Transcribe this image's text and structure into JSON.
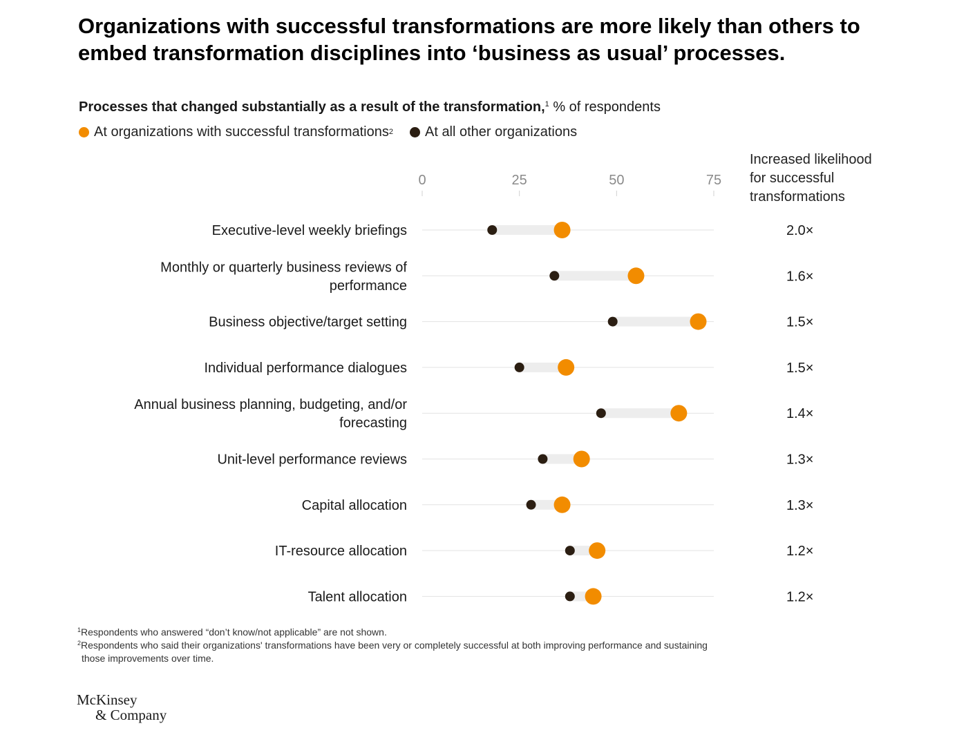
{
  "title": "Organizations with successful transformations are more likely than others to embed transformation disciplines into ‘business as usual’ processes.",
  "subtitle": {
    "bold": "Processes that changed substantially as a result of the transformation,",
    "footnote_ref": "1",
    "unit": " % of respondents"
  },
  "legend": {
    "successful": {
      "label": "At organizations with successful transformations",
      "footnote_ref": "2",
      "color": "#F28C00"
    },
    "others": {
      "label": "At all other organizations",
      "color": "#2B1E12"
    }
  },
  "right_header": {
    "line1": "Increased likelihood",
    "line2": "for successful",
    "line3": "transformations"
  },
  "chart_data": {
    "type": "dot-plot",
    "xlim": [
      0,
      75
    ],
    "xticks": [
      "0",
      "25",
      "50",
      "75"
    ],
    "series": [
      {
        "name": "At organizations with successful transformations",
        "color": "#F28C00"
      },
      {
        "name": "At all other organizations",
        "color": "#2B1E12"
      }
    ],
    "rows": [
      {
        "label": [
          "Executive-level weekly briefings"
        ],
        "successful": 36,
        "others": 18,
        "likelihood": "2.0×"
      },
      {
        "label": [
          "Monthly or quarterly business reviews of",
          "performance"
        ],
        "successful": 55,
        "others": 34,
        "likelihood": "1.6×"
      },
      {
        "label": [
          "Business objective/target setting"
        ],
        "successful": 71,
        "others": 49,
        "likelihood": "1.5×"
      },
      {
        "label": [
          "Individual performance dialogues"
        ],
        "successful": 37,
        "others": 25,
        "likelihood": "1.5×"
      },
      {
        "label": [
          "Annual business planning, budgeting, and/or",
          "forecasting"
        ],
        "successful": 66,
        "others": 46,
        "likelihood": "1.4×"
      },
      {
        "label": [
          "Unit-level performance reviews"
        ],
        "successful": 41,
        "others": 31,
        "likelihood": "1.3×"
      },
      {
        "label": [
          "Capital allocation"
        ],
        "successful": 36,
        "others": 28,
        "likelihood": "1.3×"
      },
      {
        "label": [
          "IT-resource allocation"
        ],
        "successful": 45,
        "others": 38,
        "likelihood": "1.2×"
      },
      {
        "label": [
          "Talent allocation"
        ],
        "successful": 44,
        "others": 38,
        "likelihood": "1.2×"
      }
    ]
  },
  "footnotes": {
    "f1_ref": "1",
    "f1": "Respondents who answered “don’t know/not applicable” are not shown.",
    "f2_ref": "2",
    "f2_line1": "Respondents who said their organizations' transformations have been very or completely successful at both improving performance and sustaining",
    "f2_line2": "those improvements over time."
  },
  "logo": {
    "line1": "McKinsey",
    "line2": "& Company"
  }
}
